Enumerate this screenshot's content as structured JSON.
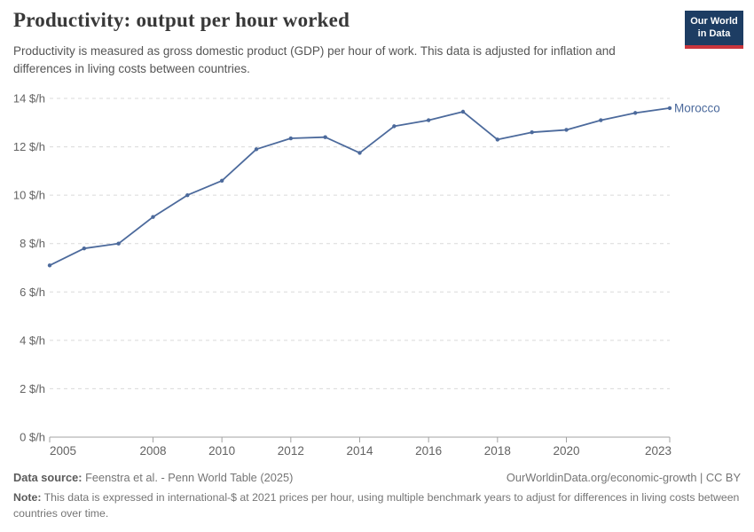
{
  "header": {
    "title": "Productivity: output per hour worked",
    "subtitle": "Productivity is measured as gross domestic product (GDP) per hour of work. This data is adjusted for inflation and differences in living costs between countries.",
    "logo_line1": "Our World",
    "logo_line2": "in Data"
  },
  "chart_data": {
    "type": "line",
    "title": "Productivity: output per hour worked",
    "xlabel": "",
    "ylabel": "$ per hour",
    "x": [
      2005,
      2006,
      2007,
      2008,
      2009,
      2010,
      2011,
      2012,
      2013,
      2014,
      2015,
      2016,
      2017,
      2018,
      2019,
      2020,
      2021,
      2022,
      2023
    ],
    "series": [
      {
        "name": "Morocco",
        "color": "#4c6a9c",
        "values": [
          7.1,
          7.8,
          8.0,
          9.1,
          10.0,
          10.6,
          11.9,
          12.35,
          12.4,
          11.75,
          12.85,
          13.1,
          13.45,
          12.3,
          12.6,
          12.7,
          13.1,
          13.4,
          13.6
        ]
      }
    ],
    "x_ticks": [
      2005,
      2008,
      2010,
      2012,
      2014,
      2016,
      2018,
      2020,
      2023
    ],
    "y_ticks": [
      0,
      2,
      4,
      6,
      8,
      10,
      12,
      14
    ],
    "y_tick_suffix": " $/h",
    "xlim": [
      2005,
      2023
    ],
    "ylim": [
      0,
      14
    ],
    "grid": "horizontal-dashed",
    "legend_position": "end-of-line-label",
    "end_label": "Morocco"
  },
  "footer": {
    "data_source_label": "Data source:",
    "data_source_text": " Feenstra et al. - Penn World Table (2025)",
    "link_text": "OurWorldinData.org/economic-growth | CC BY",
    "note_label": "Note:",
    "note_text": " This data is expressed in international-$ at 2021 prices per hour, using multiple benchmark years to adjust for differences in living costs between countries over time."
  },
  "colors": {
    "line": "#4c6a9c",
    "gridline": "#dadada",
    "axis": "#a3a3a3",
    "tick_label": "#636363",
    "title": "#383838",
    "subtitle": "#555555",
    "footer": "#757575",
    "logo_bg": "#1d3d63",
    "logo_stripe": "#c9353d"
  }
}
